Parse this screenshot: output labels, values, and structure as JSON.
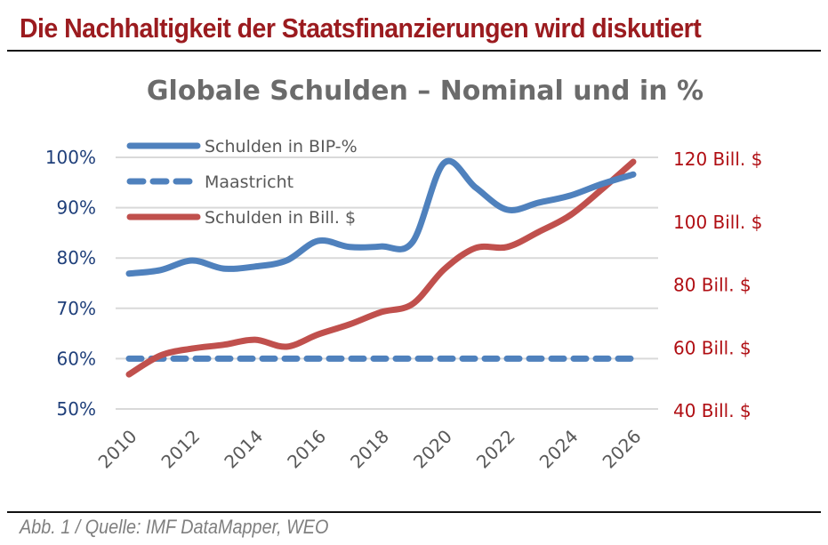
{
  "page": {
    "headline": "Die Nachhaltigkeit der Staatsfinanzierungen wird diskutiert",
    "caption": "Abb. 1 / Quelle: IMF DataMapper, WEO"
  },
  "colors": {
    "headline": "#9b1b1f",
    "series_bip": "#4f81bd",
    "series_maastricht": "#4f81bd",
    "series_bill": "#c0504d",
    "left_axis": "#1f3f7a",
    "right_axis": "#b00e13",
    "gridline": "#d9d9d9"
  },
  "chart_data": {
    "type": "line",
    "title": "Globale Schulden – Nominal und in %",
    "xlabel": "",
    "ylabel_left": "",
    "ylabel_right": "",
    "x": [
      2010,
      2011,
      2012,
      2013,
      2014,
      2015,
      2016,
      2017,
      2018,
      2019,
      2020,
      2021,
      2022,
      2023,
      2024,
      2025,
      2026
    ],
    "x_tick_labels": [
      "2010",
      "2012",
      "2014",
      "2016",
      "2018",
      "2020",
      "2022",
      "2024",
      "2026"
    ],
    "y_left": {
      "range": [
        50,
        100
      ],
      "ticks": [
        50,
        60,
        70,
        80,
        90,
        100
      ],
      "tick_labels": [
        "50%",
        "60%",
        "70%",
        "80%",
        "90%",
        "100%"
      ]
    },
    "y_right": {
      "range": [
        40,
        120
      ],
      "ticks": [
        40,
        60,
        80,
        100,
        120
      ],
      "tick_labels": [
        "40 Bill. $",
        "60 Bill. $",
        "80 Bill. $",
        "100 Bill. $",
        "120 Bill. $"
      ]
    },
    "grid": true,
    "legend_position": "top-left",
    "series": [
      {
        "name": "Schulden in BIP-%",
        "axis": "left",
        "style": "solid",
        "values": [
          76.9,
          77.6,
          79.5,
          77.9,
          78.3,
          79.5,
          83.4,
          82.2,
          82.3,
          83.2,
          98.9,
          94.0,
          89.6,
          91.0,
          92.4,
          94.7,
          96.6
        ]
      },
      {
        "name": "Maastricht",
        "axis": "left",
        "style": "dashed",
        "values": [
          60,
          60,
          60,
          60,
          60,
          60,
          60,
          60,
          60,
          60,
          60,
          60,
          60,
          60,
          60,
          60,
          60
        ]
      },
      {
        "name": "Schulden in Bill. $",
        "axis": "right",
        "style": "solid",
        "values": [
          51.0,
          57.0,
          59.2,
          60.4,
          62.0,
          59.8,
          63.7,
          66.9,
          70.8,
          73.4,
          84.4,
          91.2,
          91.5,
          96.3,
          101.6,
          109.8,
          118.6
        ]
      }
    ]
  }
}
